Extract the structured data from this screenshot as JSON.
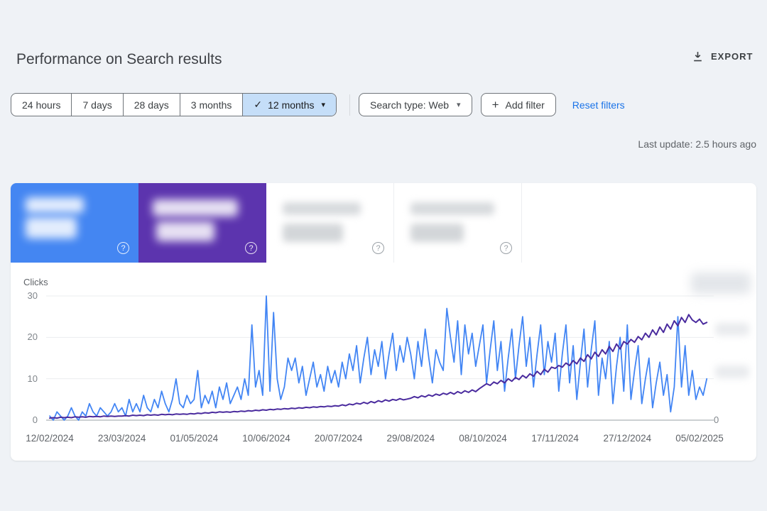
{
  "colors": {
    "page_bg": "#eff2f6",
    "card_blue": "#4486f2",
    "card_purple": "#5c34ae",
    "link_blue": "#1a73e8",
    "selected_chip_bg": "#c5def8",
    "clicks_line": "#4285f4",
    "impressions_line": "#4a2b9e"
  },
  "header": {
    "title": "Performance on Search results",
    "export_label": "EXPORT"
  },
  "date_range": {
    "items": [
      {
        "label": "24 hours",
        "selected": false
      },
      {
        "label": "7 days",
        "selected": false
      },
      {
        "label": "28 days",
        "selected": false
      },
      {
        "label": "3 months",
        "selected": false
      },
      {
        "label": "12 months",
        "selected": true
      }
    ]
  },
  "filters": {
    "search_type_label": "Search type: Web",
    "add_filter_label": "Add filter",
    "reset_label": "Reset filters"
  },
  "status": {
    "last_update": "Last update: 2.5 hours ago"
  },
  "icons": {
    "help_glyph": "?",
    "check_glyph": "✓",
    "caret_glyph": "▾",
    "plus_glyph": "+"
  },
  "metric_cards": [
    {
      "name": "metric-card-1",
      "selected": true,
      "bg": "#4486f2",
      "text_redacted": true
    },
    {
      "name": "metric-card-2",
      "selected": true,
      "bg": "#5c34ae",
      "text_redacted": true
    },
    {
      "name": "metric-card-3",
      "selected": false,
      "bg": "#ffffff",
      "text_redacted": true
    },
    {
      "name": "metric-card-4",
      "selected": false,
      "bg": "#ffffff",
      "text_redacted": true
    }
  ],
  "chart_data": {
    "type": "line",
    "axis_label_left": "Clicks",
    "grid": "horizontal",
    "y_axis_left": {
      "ticks": [
        0,
        10,
        20,
        30
      ],
      "max": 30
    },
    "y_axis_right": {
      "visible_tick": "0",
      "tick_labels_blurred": true
    },
    "x_ticks": [
      {
        "label": "12/02/2024",
        "index": 0
      },
      {
        "label": "23/03/2024",
        "index": 20
      },
      {
        "label": "01/05/2024",
        "index": 40
      },
      {
        "label": "10/06/2024",
        "index": 60
      },
      {
        "label": "20/07/2024",
        "index": 80
      },
      {
        "label": "29/08/2024",
        "index": 100
      },
      {
        "label": "08/10/2024",
        "index": 120
      },
      {
        "label": "17/11/2024",
        "index": 140
      },
      {
        "label": "27/12/2024",
        "index": 160
      },
      {
        "label": "05/02/2025",
        "index": 180
      }
    ],
    "series": [
      {
        "name": "clicks",
        "color": "#4285f4",
        "width": 1.8,
        "axis": "left",
        "values": [
          1,
          0,
          2,
          1,
          0,
          1,
          3,
          1,
          0,
          2,
          1,
          4,
          2,
          1,
          3,
          2,
          1,
          2,
          4,
          2,
          3,
          1,
          5,
          2,
          4,
          2,
          6,
          3,
          2,
          5,
          3,
          7,
          4,
          2,
          5,
          10,
          4,
          3,
          6,
          4,
          5,
          12,
          3,
          6,
          4,
          7,
          3,
          8,
          5,
          9,
          4,
          6,
          8,
          5,
          10,
          6,
          23,
          8,
          12,
          6,
          30,
          7,
          26,
          10,
          5,
          8,
          15,
          12,
          15,
          9,
          13,
          6,
          10,
          14,
          8,
          11,
          7,
          13,
          9,
          12,
          8,
          14,
          10,
          16,
          12,
          18,
          9,
          15,
          20,
          11,
          17,
          13,
          19,
          10,
          16,
          21,
          12,
          18,
          14,
          20,
          16,
          10,
          19,
          13,
          22,
          15,
          9,
          17,
          14,
          12,
          27,
          20,
          14,
          24,
          11,
          23,
          16,
          21,
          13,
          18,
          23,
          9,
          17,
          24,
          12,
          19,
          7,
          15,
          22,
          10,
          18,
          25,
          13,
          20,
          8,
          16,
          23,
          11,
          19,
          14,
          21,
          7,
          16,
          23,
          9,
          18,
          5,
          14,
          22,
          8,
          17,
          24,
          6,
          15,
          10,
          19,
          4,
          13,
          20,
          7,
          23,
          5,
          12,
          18,
          4,
          10,
          15,
          3,
          9,
          14,
          6,
          11,
          2,
          8,
          25,
          8,
          18,
          6,
          12,
          5,
          8,
          6,
          10
        ]
      },
      {
        "name": "impressions",
        "color": "#4a2b9e",
        "width": 2,
        "axis": "right",
        "values_note": "right-axis tick labels are blurred in source; values recorded in left-axis visual units",
        "values": [
          0.5,
          0.6,
          0.5,
          0.7,
          0.6,
          0.7,
          0.6,
          0.8,
          0.7,
          0.8,
          0.7,
          0.9,
          0.8,
          0.9,
          0.8,
          1,
          0.9,
          1,
          0.9,
          1,
          1,
          1.1,
          1,
          1.2,
          1.1,
          1.2,
          1.1,
          1.3,
          1.2,
          1.3,
          1.2,
          1.4,
          1.3,
          1.4,
          1.3,
          1.5,
          1.4,
          1.5,
          1.4,
          1.6,
          1.5,
          1.7,
          1.6,
          1.8,
          1.7,
          1.9,
          1.8,
          2,
          1.9,
          2,
          1.9,
          2.1,
          2,
          2.2,
          2.1,
          2.3,
          2.2,
          2.4,
          2.3,
          2.5,
          2.4,
          2.6,
          2.5,
          2.7,
          2.6,
          2.8,
          2.7,
          2.9,
          2.8,
          3,
          2.9,
          3.1,
          3,
          3.2,
          3.1,
          3.3,
          3.2,
          3.4,
          3.3,
          3.5,
          3.4,
          3.7,
          3.5,
          3.9,
          3.7,
          4.1,
          3.9,
          4.3,
          4,
          4.5,
          4.2,
          4.7,
          4.4,
          4.9,
          4.6,
          5,
          4.8,
          5.2,
          4.9,
          5.1,
          5.3,
          5.7,
          5.4,
          5.9,
          5.6,
          6.1,
          5.8,
          6.3,
          6,
          6.5,
          6.2,
          6.7,
          6.3,
          6.9,
          6.5,
          7.1,
          6.7,
          7.3,
          6.9,
          7.6,
          8.2,
          8.8,
          8.4,
          9.2,
          8.8,
          9.6,
          9,
          10,
          9.4,
          10.3,
          9.8,
          10.8,
          10.2,
          11.2,
          10.6,
          11.8,
          11,
          12.3,
          11.6,
          12.8,
          12.5,
          13.2,
          12.8,
          13.8,
          13.2,
          14.4,
          13.6,
          15,
          14.2,
          15.8,
          14.8,
          16.4,
          15.4,
          17,
          16,
          17.8,
          16.6,
          18.4,
          17.2,
          19,
          18.4,
          19.5,
          18.8,
          20.2,
          19.4,
          21,
          20,
          21.8,
          20.6,
          22.5,
          21.2,
          23.2,
          22,
          24,
          22.8,
          24.8,
          23.6,
          25.5,
          24.2,
          23.6,
          24.4,
          23.2,
          23.6
        ]
      }
    ]
  }
}
